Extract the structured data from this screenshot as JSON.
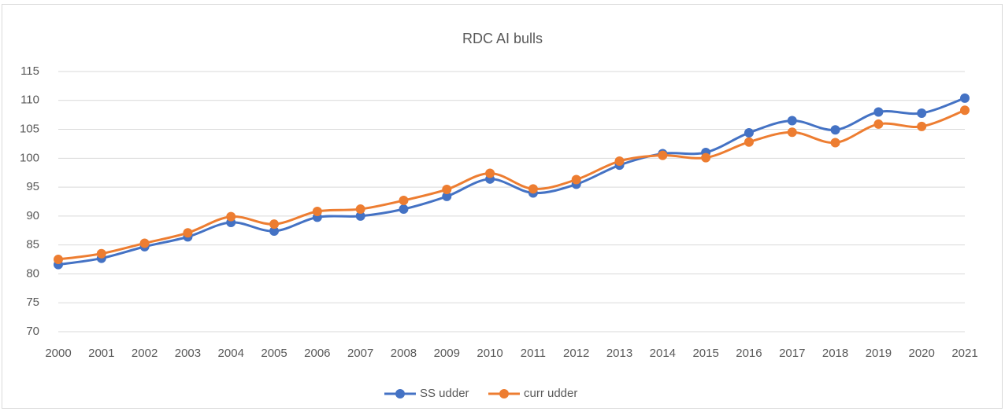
{
  "chart_data": {
    "type": "line",
    "title": "RDC AI bulls",
    "categories": [
      "2000",
      "2001",
      "2002",
      "2003",
      "2004",
      "2005",
      "2006",
      "2007",
      "2008",
      "2009",
      "2010",
      "2011",
      "2012",
      "2013",
      "2014",
      "2015",
      "2016",
      "2017",
      "2018",
      "2019",
      "2020",
      "2021"
    ],
    "series": [
      {
        "name": "SS udder",
        "color": "#4472c4",
        "values": [
          81.6,
          82.7,
          84.7,
          86.4,
          88.9,
          87.4,
          89.8,
          90.0,
          91.2,
          93.4,
          96.4,
          94.0,
          95.5,
          98.8,
          100.8,
          101.0,
          104.4,
          106.5,
          104.9,
          108.0,
          107.8,
          110.4
        ]
      },
      {
        "name": "curr udder",
        "color": "#ed7d31",
        "values": [
          82.5,
          83.5,
          85.3,
          87.1,
          89.9,
          88.6,
          90.8,
          91.2,
          92.7,
          94.6,
          97.4,
          94.7,
          96.3,
          99.5,
          100.5,
          100.1,
          102.8,
          104.5,
          102.7,
          105.9,
          105.5,
          108.3
        ]
      }
    ],
    "ylim": [
      70,
      115
    ],
    "yticks": [
      70,
      75,
      80,
      85,
      90,
      95,
      100,
      105,
      110,
      115
    ],
    "grid": true,
    "smooth": true,
    "legend": "bottom"
  }
}
